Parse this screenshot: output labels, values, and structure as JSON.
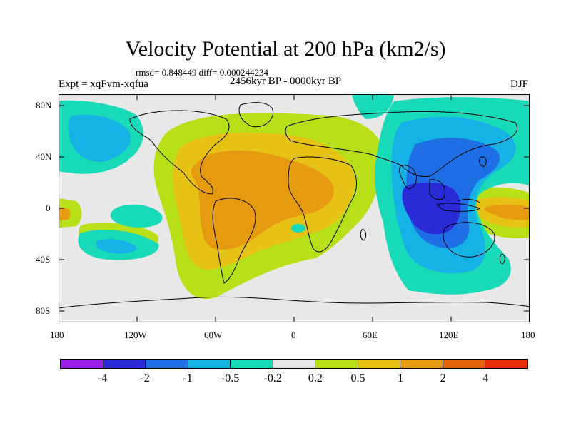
{
  "title": "Velocity Potential at 200 hPa (km2/s)",
  "stats": "rmsd= 0.848449 diff= 0.000244234",
  "experiment": "Expt = xqFvm-xqfua",
  "subtitle": "2456kyr BP - 0000kyr BP",
  "season": "DJF",
  "map": {
    "lat_ticks": [
      "80N",
      "40N",
      "0",
      "40S",
      "80S"
    ],
    "lon_ticks": [
      "180",
      "120W",
      "60W",
      "0",
      "60E",
      "120E",
      "180"
    ],
    "background_color": "#e8e8e8",
    "land_outline_color": "#000000"
  },
  "colorbar": {
    "colors": [
      "#9a1ee6",
      "#2a2ad6",
      "#1e6fe6",
      "#15b2e6",
      "#18d9b8",
      "#e8e8e8",
      "#b8e018",
      "#e6c215",
      "#e69a10",
      "#e6650c",
      "#e62e08"
    ],
    "labels": [
      "-4",
      "-2",
      "-1",
      "-0.5",
      "-0.2",
      "0.2",
      "0.5",
      "1",
      "2",
      "4"
    ]
  }
}
